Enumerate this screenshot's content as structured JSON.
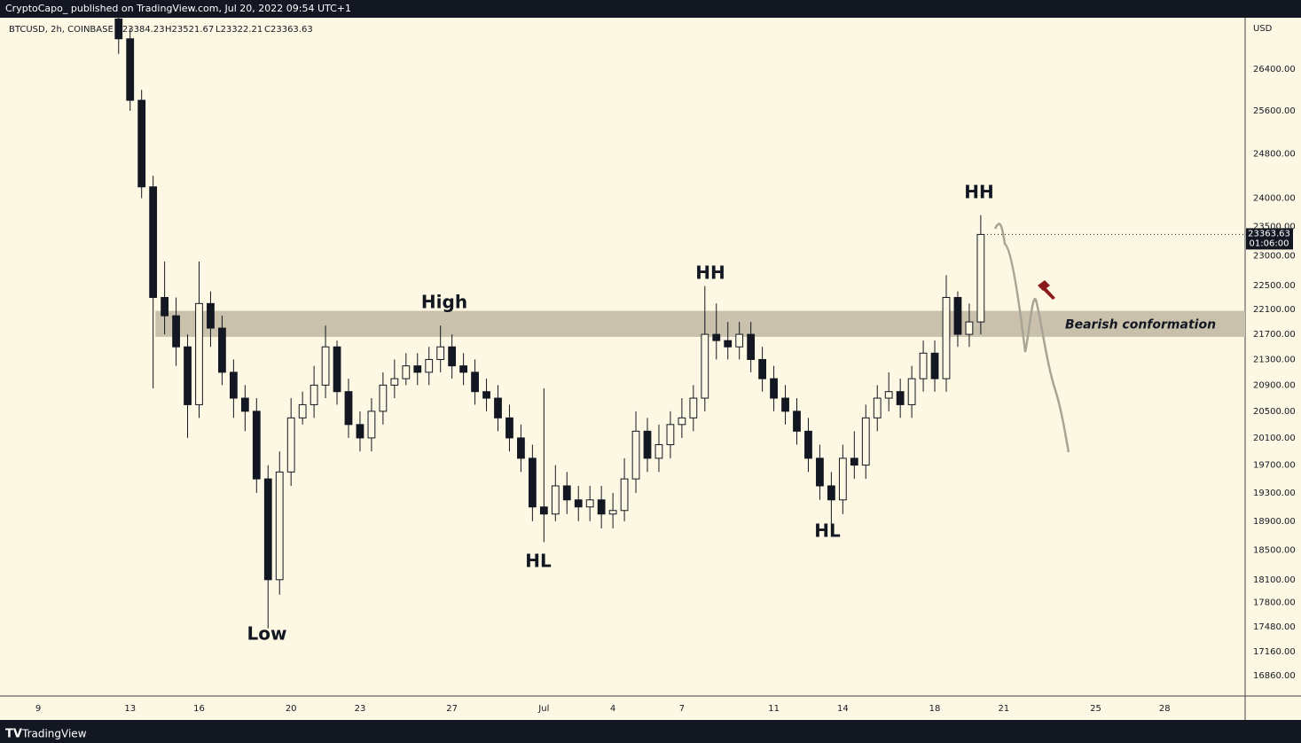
{
  "header": {
    "publisher": "CryptoCapo_  published on TradingView.com, Jul 20, 2022 09:54 UTC+1",
    "symbol": "BTCUSD, 2h, COINBASE",
    "ohlc": [
      "O23384.23",
      "H23521.67",
      "L23322.21",
      "C23363.63"
    ],
    "footer": "TradingView"
  },
  "chart_data": {
    "type": "candlestick",
    "log": true,
    "grid": false,
    "up_color": "#fdf8e3",
    "down_color": "#131722",
    "y_unit": "USD",
    "last_price": 23363.63,
    "countdown": "01:06:00",
    "xlim": [
      7.34,
      61.5
    ],
    "xticks": [
      9,
      13,
      16,
      20,
      23,
      27,
      {
        "value": 31,
        "label": "Jul"
      },
      {
        "value": 34,
        "label": "4"
      },
      {
        "value": 37,
        "label": "7"
      },
      {
        "value": 41,
        "label": "11"
      },
      {
        "value": 44,
        "label": "14"
      },
      {
        "value": 48,
        "label": "18"
      },
      {
        "value": 51,
        "label": "21"
      },
      {
        "value": 55,
        "label": "25"
      },
      {
        "value": 58,
        "label": "28"
      }
    ],
    "ylim": [
      16608,
      27424
    ],
    "yticks": [
      {
        "value": 26400,
        "label": "26400.00"
      },
      {
        "value": 25600,
        "label": "25600.00"
      },
      {
        "value": 24800,
        "label": "24800.00"
      },
      {
        "value": 24000,
        "label": "24000.00"
      },
      {
        "value": 23500,
        "label": "23500.00"
      },
      {
        "value": 23000,
        "label": "23000.00"
      },
      {
        "value": 22500,
        "label": "22500.00"
      },
      {
        "value": 22100,
        "label": "22100.00"
      },
      {
        "value": 21700,
        "label": "21700.00"
      },
      {
        "value": 21300,
        "label": "21300.00"
      },
      {
        "value": 20900,
        "label": "20900.00"
      },
      {
        "value": 20500,
        "label": "20500.00"
      },
      {
        "value": 20100,
        "label": "20100.00"
      },
      {
        "value": 19700,
        "label": "19700.00"
      },
      {
        "value": 19300,
        "label": "19300.00"
      },
      {
        "value": 18900,
        "label": "18900.00"
      },
      {
        "value": 18500,
        "label": "18500.00"
      },
      {
        "value": 18100,
        "label": "18100.00"
      },
      {
        "value": 17800,
        "label": "17800.00"
      },
      {
        "value": 17480,
        "label": "17480.00"
      },
      {
        "value": 17160,
        "label": "17160.00"
      },
      {
        "value": 16860,
        "label": "16860.00"
      }
    ],
    "x": [
      12.5,
      13,
      13.5,
      14,
      14.5,
      15,
      15.5,
      16,
      16.5,
      17,
      17.5,
      18,
      18.5,
      19,
      19.5,
      20,
      20.5,
      21,
      21.5,
      22,
      22.5,
      23,
      23.5,
      24,
      24.5,
      25,
      25.5,
      26,
      26.5,
      27,
      27.5,
      28,
      28.5,
      29,
      29.5,
      30,
      30.5,
      31,
      31.5,
      32,
      32.5,
      33,
      33.5,
      34,
      34.5,
      35,
      35.5,
      36,
      36.5,
      37,
      37.5,
      38,
      38.5,
      39,
      39.5,
      40,
      40.5,
      41,
      41.5,
      42,
      42.5,
      43,
      43.5,
      44,
      44.5,
      45,
      45.5,
      46,
      46.5,
      47,
      47.5,
      48,
      48.5,
      49,
      49.5,
      50
    ],
    "open": [
      27400,
      27000,
      25800,
      24200,
      22300,
      22000,
      21500,
      20600,
      22200,
      21800,
      21100,
      20700,
      20500,
      19500,
      18100,
      19600,
      20400,
      20600,
      20900,
      21500,
      20800,
      20300,
      20100,
      20500,
      20900,
      21000,
      21200,
      21100,
      21300,
      21500,
      21200,
      21100,
      20800,
      20700,
      20400,
      20100,
      19800,
      19100,
      19000,
      19400,
      19200,
      19100,
      19200,
      19000,
      19050,
      19500,
      20200,
      19800,
      20000,
      20300,
      20400,
      20700,
      21700,
      21600,
      21500,
      21700,
      21300,
      21000,
      20700,
      20500,
      20200,
      19800,
      19400,
      19200,
      19800,
      19700,
      20400,
      20700,
      20800,
      20600,
      21000,
      21400,
      21000,
      22300,
      21700,
      21900
    ],
    "high": [
      27600,
      27200,
      26000,
      24400,
      22900,
      22300,
      21700,
      22900,
      22400,
      22000,
      21300,
      20900,
      20700,
      19700,
      19900,
      20700,
      20800,
      21200,
      21840,
      21600,
      21000,
      20500,
      20700,
      21100,
      21300,
      21400,
      21400,
      21500,
      21840,
      21700,
      21400,
      21300,
      21000,
      20900,
      20600,
      20300,
      20000,
      20850,
      19700,
      19600,
      19400,
      19400,
      19400,
      19300,
      19800,
      20500,
      20400,
      20300,
      20500,
      20700,
      20900,
      22490,
      22200,
      21900,
      21900,
      21900,
      21500,
      21200,
      20900,
      20700,
      20400,
      20000,
      19600,
      20000,
      20200,
      20600,
      20900,
      21100,
      21000,
      21200,
      21600,
      21600,
      22670,
      22400,
      22200,
      23700
    ],
    "low": [
      26700,
      25600,
      24000,
      20850,
      21700,
      21200,
      20100,
      20400,
      21500,
      20900,
      20400,
      20200,
      19300,
      17460,
      17900,
      19400,
      20300,
      20400,
      20700,
      20600,
      20100,
      19900,
      19900,
      20300,
      20700,
      20900,
      20900,
      20900,
      21100,
      21000,
      20900,
      20600,
      20500,
      20200,
      19900,
      19600,
      18900,
      18610,
      18900,
      19000,
      18900,
      18900,
      18800,
      18800,
      18900,
      19300,
      19600,
      19600,
      19800,
      20100,
      20200,
      20500,
      21300,
      21300,
      21300,
      21100,
      20800,
      20500,
      20300,
      20000,
      19600,
      19200,
      18860,
      19000,
      19500,
      19500,
      20200,
      20500,
      20400,
      20400,
      20800,
      20800,
      20800,
      21500,
      21500,
      21700
    ],
    "close": [
      27000,
      25800,
      24200,
      22300,
      22000,
      21500,
      20600,
      22200,
      21800,
      21100,
      20700,
      20500,
      19500,
      18100,
      19600,
      20400,
      20600,
      20900,
      21500,
      20800,
      20300,
      20100,
      20500,
      20900,
      21000,
      21200,
      21100,
      21300,
      21500,
      21200,
      21100,
      20800,
      20700,
      20400,
      20100,
      19800,
      19100,
      19000,
      19400,
      19200,
      19100,
      19200,
      19000,
      19050,
      19500,
      20200,
      19800,
      20000,
      20300,
      20400,
      20700,
      21700,
      21600,
      21500,
      21700,
      21300,
      21000,
      20700,
      20500,
      20200,
      19800,
      19400,
      19200,
      19800,
      19700,
      20400,
      20700,
      20800,
      20600,
      21000,
      21400,
      21000,
      22300,
      21700,
      21900,
      23363.63
    ],
    "zone": {
      "label": "Bearish conformation",
      "start": 14.1,
      "low": 21660,
      "high": 22080
    },
    "annotations": [
      "Low",
      "High",
      "HL",
      "HH",
      "HL",
      "HH"
    ]
  }
}
